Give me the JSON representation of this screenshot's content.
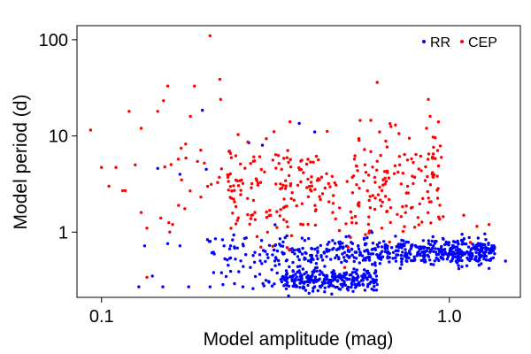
{
  "chart_data": {
    "type": "scatter",
    "xscale": "log",
    "yscale": "log",
    "xlabel": "Model amplitude (mag)",
    "ylabel": "Model period (d)",
    "xlim": [
      0.085,
      1.6
    ],
    "ylim": [
      0.21,
      140
    ],
    "xticks": [
      {
        "value": 0.1,
        "label": "0.1"
      },
      {
        "value": 1.0,
        "label": "1.0"
      }
    ],
    "yticks": [
      {
        "value": 1,
        "label": "1"
      },
      {
        "value": 10,
        "label": "10"
      },
      {
        "value": 100,
        "label": "100"
      }
    ],
    "legend": {
      "position": "top-right"
    },
    "series": [
      {
        "name": "RR",
        "color": "#0000ff",
        "clusters": [
          {
            "n": 520,
            "x_range": [
              0.28,
              1.35
            ],
            "y_center": 0.62,
            "y_spread": 0.07,
            "x_bias": 1.6
          },
          {
            "n": 260,
            "x_range": [
              0.33,
              0.62
            ],
            "y_center": 0.32,
            "y_spread": 0.06,
            "x_bias": 1.0
          },
          {
            "n": 45,
            "x_range": [
              0.2,
              0.33
            ],
            "y_center": 0.6,
            "y_spread": 0.12,
            "x_bias": 1.0
          },
          {
            "n": 30,
            "x_range": [
              0.22,
              0.42
            ],
            "y_center": 0.3,
            "y_spread": 0.08,
            "x_bias": 1.0
          }
        ],
        "points": [
          [
            0.195,
            18.5
          ],
          [
            0.37,
            13.5
          ],
          [
            0.41,
            11.0
          ],
          [
            0.265,
            8.5
          ],
          [
            0.29,
            8.0
          ],
          [
            0.145,
            4.6
          ],
          [
            0.168,
            4.0
          ],
          [
            0.2,
            4.5
          ],
          [
            0.155,
            0.76
          ],
          [
            0.133,
            0.72
          ],
          [
            0.225,
            0.72
          ],
          [
            0.168,
            0.72
          ],
          [
            0.235,
            0.72
          ],
          [
            0.255,
            0.75
          ],
          [
            0.128,
            0.27
          ],
          [
            0.14,
            0.35
          ],
          [
            0.15,
            0.27
          ],
          [
            0.178,
            0.27
          ],
          [
            0.205,
            0.27
          ],
          [
            0.255,
            0.27
          ],
          [
            0.21,
            0.38
          ],
          [
            1.45,
            0.5
          ],
          [
            1.3,
            0.42
          ],
          [
            0.9,
            0.46
          ]
        ]
      },
      {
        "name": "CEP",
        "color": "#ff0000",
        "clusters": [
          {
            "n": 300,
            "x_range": [
              0.23,
              0.95
            ],
            "y_center": 2.8,
            "y_spread": 0.28,
            "x_bias": 1.0
          },
          {
            "n": 40,
            "x_range": [
              0.15,
              0.3
            ],
            "y_center": 3.5,
            "y_spread": 0.3,
            "x_bias": 1.0
          }
        ],
        "points": [
          [
            0.205,
            110
          ],
          [
            0.62,
            36
          ],
          [
            0.155,
            33
          ],
          [
            0.185,
            33
          ],
          [
            0.87,
            24
          ],
          [
            0.22,
            24
          ],
          [
            0.12,
            18
          ],
          [
            0.145,
            18
          ],
          [
            0.18,
            16
          ],
          [
            0.093,
            11.5
          ],
          [
            0.13,
            12
          ],
          [
            0.125,
            5
          ],
          [
            0.1,
            4.7
          ],
          [
            0.11,
            4.7
          ],
          [
            0.117,
            2.7
          ],
          [
            0.105,
            3.0
          ],
          [
            0.115,
            2.7
          ],
          [
            0.13,
            1.6
          ],
          [
            0.148,
            1.4
          ],
          [
            0.16,
            1.2
          ],
          [
            0.135,
            1.1
          ],
          [
            0.86,
            12
          ],
          [
            0.93,
            14
          ],
          [
            0.88,
            16
          ],
          [
            0.7,
            13
          ],
          [
            0.63,
            11
          ],
          [
            0.55,
            9
          ],
          [
            1.1,
            1.5
          ],
          [
            1.2,
            1.15
          ],
          [
            1.3,
            1.2
          ],
          [
            1.15,
            0.78
          ],
          [
            0.96,
            1.45
          ],
          [
            0.135,
            0.34
          ],
          [
            0.5,
            0.43
          ],
          [
            0.3,
            1.0
          ],
          [
            0.28,
            0.9
          ]
        ]
      }
    ]
  }
}
